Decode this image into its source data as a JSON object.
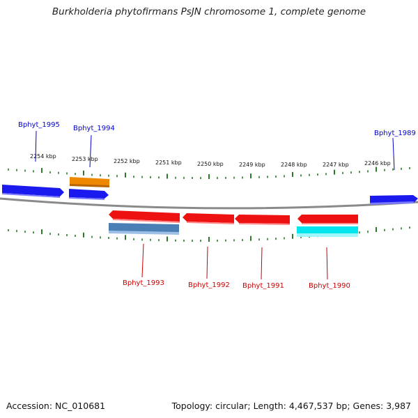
{
  "title": "Burkholderia phytofirmans PsJN chromosome 1, complete genome",
  "footer": {
    "accession": "Accession: NC_010681",
    "topology": "Topology: circular; Length: 4,467,537 bp; Genes: 3,987"
  },
  "scale_labels": [
    "2254 kbp",
    "2253 kbp",
    "2252 kbp",
    "2251 kbp",
    "2250 kbp",
    "2249 kbp",
    "2248 kbp",
    "2247 kbp",
    "2246 kbp"
  ],
  "genes_top": [
    {
      "label": "Bphyt_1995",
      "color": "#0000cc"
    },
    {
      "label": "Bphyt_1994",
      "color": "#0000cc"
    },
    {
      "label": "Bphyt_1989",
      "color": "#0000cc"
    }
  ],
  "genes_bottom": [
    {
      "label": "Bphyt_1993",
      "color": "#cc0000"
    },
    {
      "label": "Bphyt_1992",
      "color": "#cc0000"
    },
    {
      "label": "Bphyt_1991",
      "color": "#cc0000"
    },
    {
      "label": "Bphyt_1990",
      "color": "#cc0000"
    }
  ],
  "colors": {
    "tick": "#2a7a2a",
    "backbone": "#8a8a8a",
    "forward_gene": "#1a1aee",
    "reverse_gene": "#ee1111",
    "orange_gene": "#ee8800",
    "steelblue_gene": "#4a7fb5",
    "cyan_gene": "#00e5ee"
  }
}
